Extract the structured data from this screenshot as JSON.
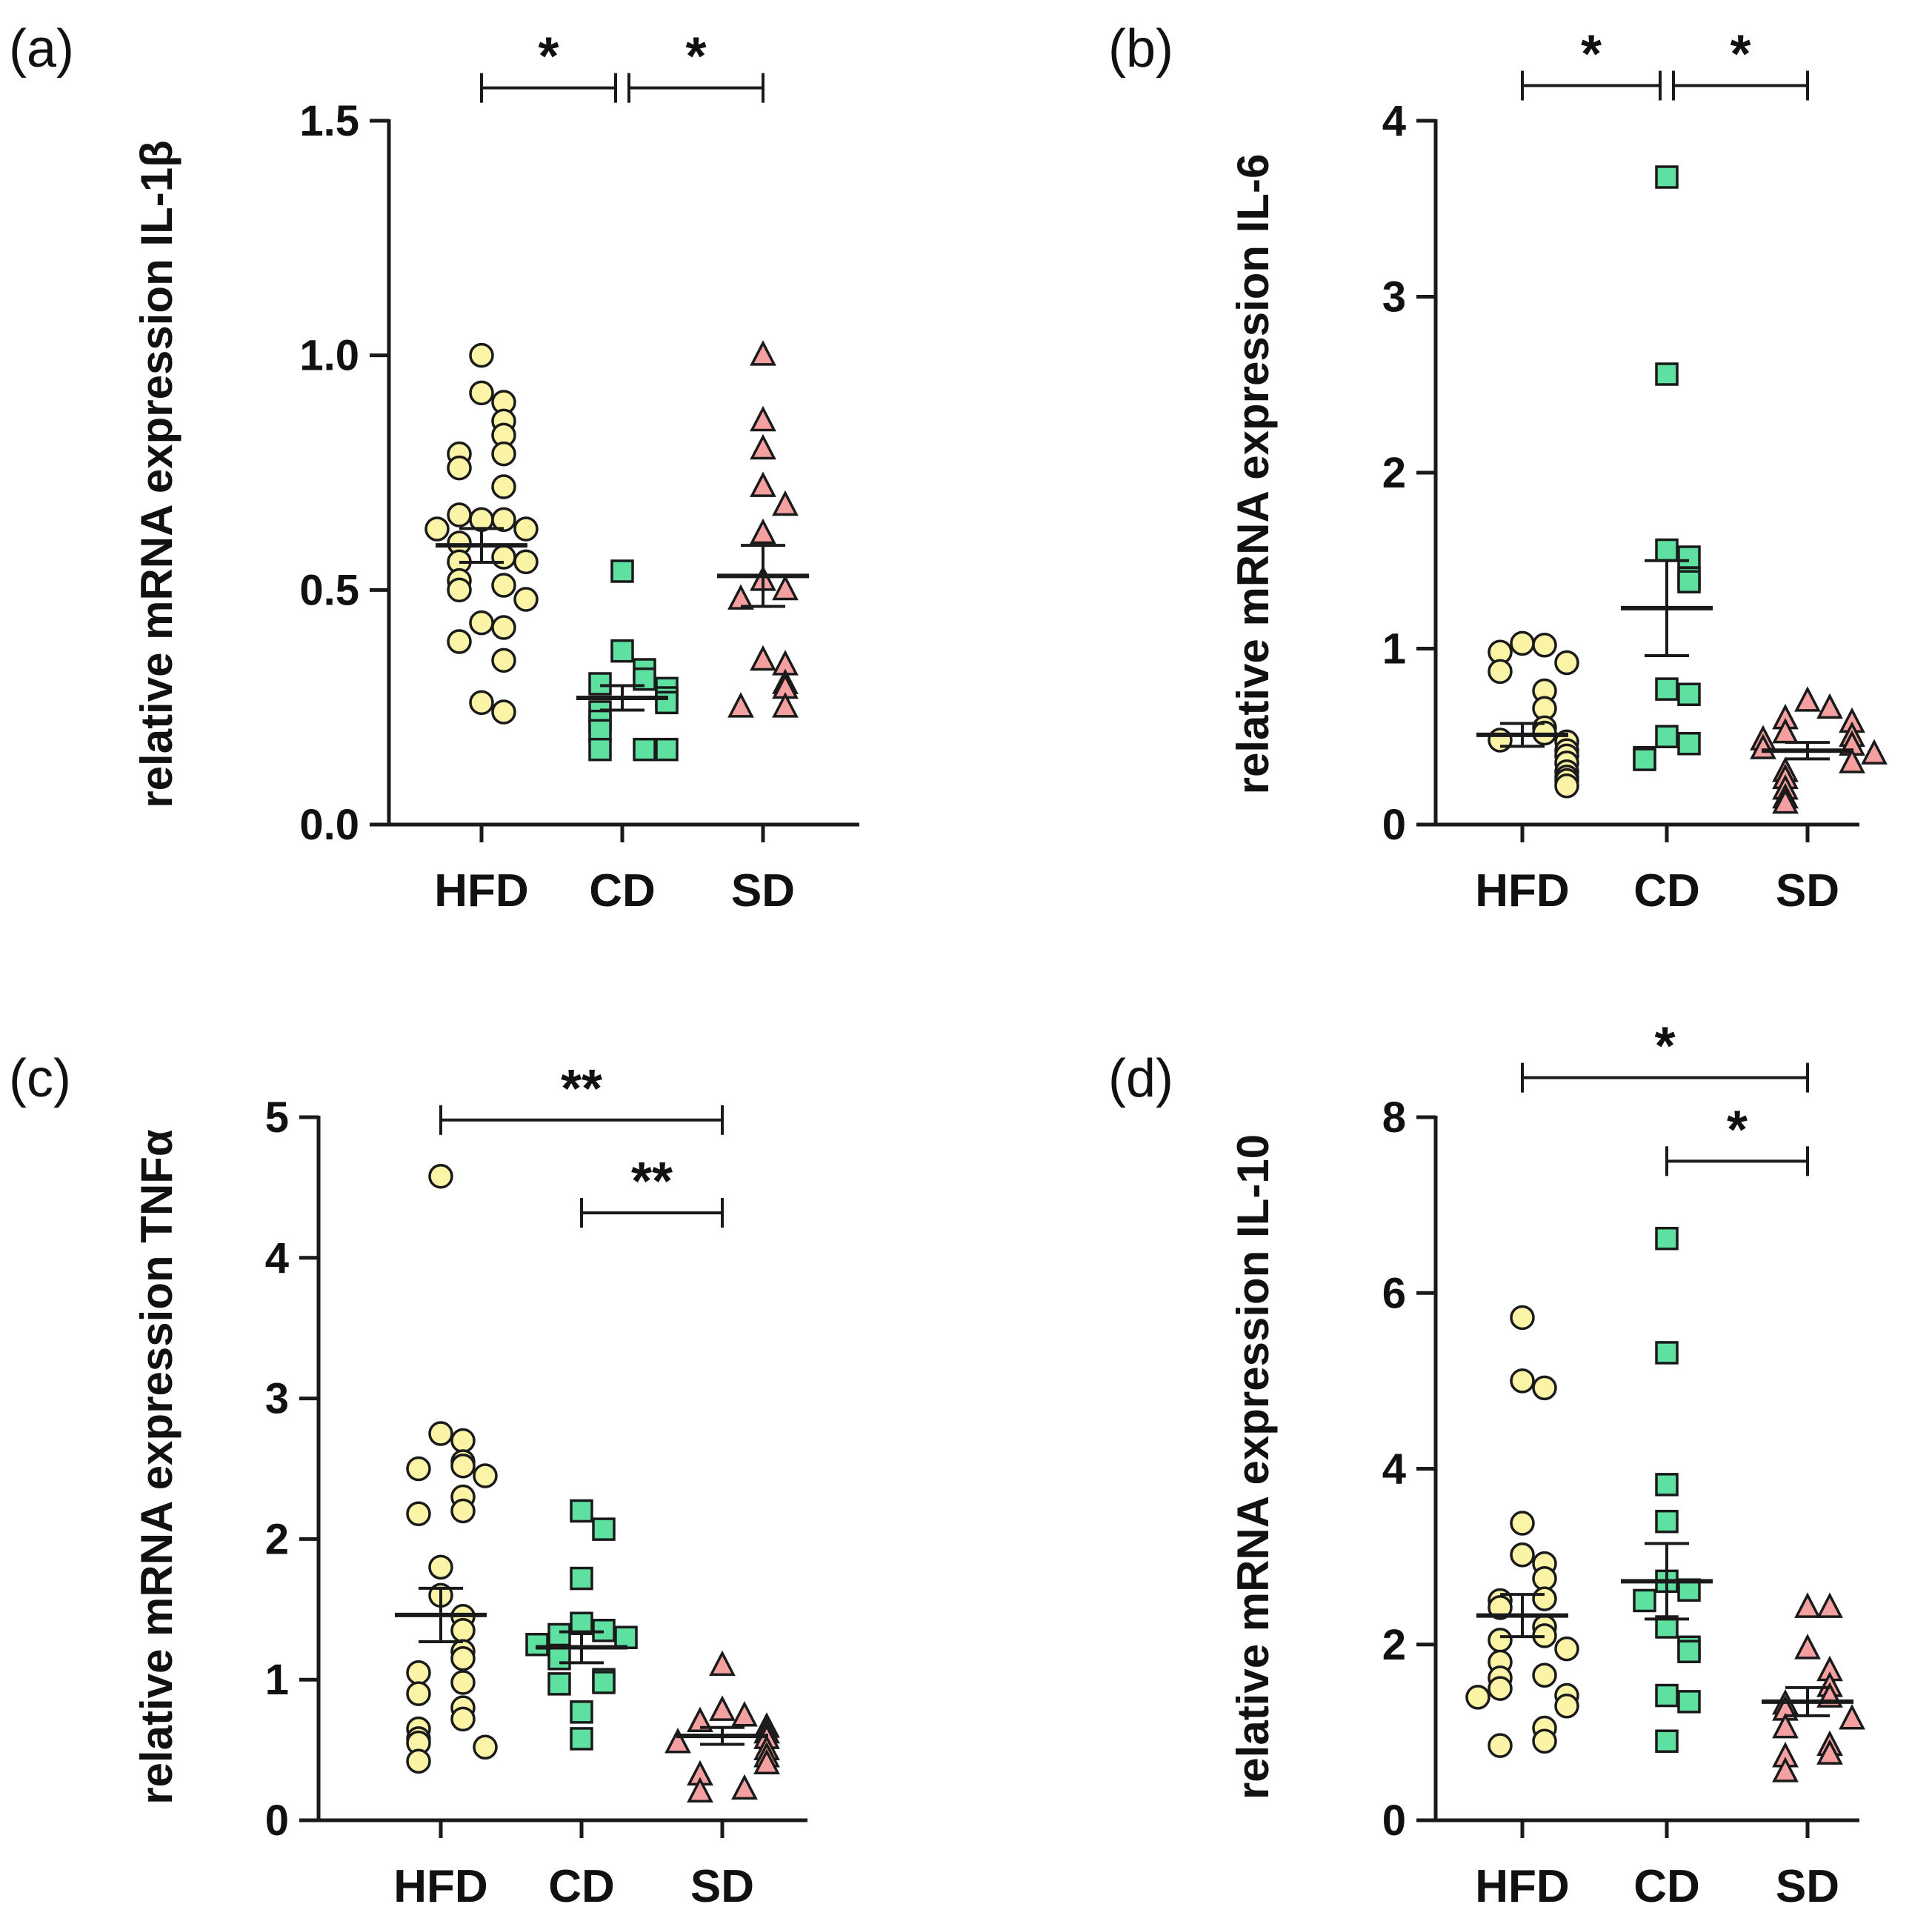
{
  "chart_data": [
    {
      "type": "scatter",
      "panel_label": "(a)",
      "ylabel": "relative mRNA expression IL-1β",
      "ylim": [
        0,
        1.5
      ],
      "yticks": [
        0.0,
        0.5,
        1.0,
        1.5
      ],
      "ytick_labels": [
        "0.0",
        "0.5",
        "1.0",
        "1.5"
      ],
      "categories": [
        "HFD",
        "CD",
        "SD"
      ],
      "series": [
        {
          "name": "HFD",
          "marker": "circle",
          "color": "#fbf3a6",
          "values": [
            1.0,
            0.92,
            0.9,
            0.86,
            0.83,
            0.79,
            0.79,
            0.76,
            0.72,
            0.65,
            0.65,
            0.66,
            0.63,
            0.63,
            0.6,
            0.57,
            0.56,
            0.56,
            0.52,
            0.51,
            0.5,
            0.48,
            0.43,
            0.42,
            0.39,
            0.35,
            0.26,
            0.24
          ],
          "mean": 0.595,
          "sem": 0.036
        },
        {
          "name": "CD",
          "marker": "square",
          "color": "#5ee0a0",
          "values": [
            0.54,
            0.37,
            0.33,
            0.31,
            0.3,
            0.29,
            0.27,
            0.26,
            0.24,
            0.22,
            0.2,
            0.16,
            0.16,
            0.16
          ],
          "mean": 0.27,
          "sem": 0.026
        },
        {
          "name": "SD",
          "marker": "triangle",
          "color": "#f4a0a0",
          "values": [
            1.0,
            0.86,
            0.8,
            0.72,
            0.68,
            0.62,
            0.52,
            0.5,
            0.48,
            0.35,
            0.34,
            0.3,
            0.29,
            0.25,
            0.25
          ],
          "mean": 0.53,
          "sem": 0.065
        }
      ],
      "significance": [
        {
          "from": "HFD",
          "to": "CD",
          "label": "*",
          "y": 1.57
        },
        {
          "from": "CD",
          "to": "SD",
          "label": "*",
          "y": 1.57
        }
      ]
    },
    {
      "type": "scatter",
      "panel_label": "(b)",
      "ylabel": "relative mRNA expression IL-6",
      "ylim": [
        0,
        4
      ],
      "yticks": [
        0,
        1,
        2,
        3,
        4
      ],
      "ytick_labels": [
        "0",
        "1",
        "2",
        "3",
        "4"
      ],
      "categories": [
        "HFD",
        "CD",
        "SD"
      ],
      "series": [
        {
          "name": "HFD",
          "marker": "circle",
          "color": "#fbf3a6",
          "values": [
            1.03,
            1.02,
            0.98,
            0.92,
            0.87,
            0.76,
            0.66,
            0.55,
            0.52,
            0.48,
            0.47,
            0.42,
            0.39,
            0.35,
            0.3,
            0.27,
            0.25,
            0.22
          ],
          "mean": 0.51,
          "sem": 0.065
        },
        {
          "name": "CD",
          "marker": "square",
          "color": "#5ee0a0",
          "values": [
            3.68,
            2.56,
            1.56,
            1.52,
            1.4,
            1.38,
            0.77,
            0.74,
            0.5,
            0.46,
            0.38,
            0.37
          ],
          "mean": 1.23,
          "sem": 0.27
        },
        {
          "name": "SD",
          "marker": "triangle",
          "color": "#f4a0a0",
          "values": [
            0.7,
            0.66,
            0.6,
            0.58,
            0.52,
            0.5,
            0.48,
            0.45,
            0.43,
            0.4,
            0.35,
            0.3,
            0.26,
            0.2,
            0.15,
            0.12
          ],
          "mean": 0.42,
          "sem": 0.047
        }
      ],
      "significance": [
        {
          "from": "HFD",
          "to": "CD",
          "label": "*",
          "y": 4.2
        },
        {
          "from": "CD",
          "to": "SD",
          "label": "*",
          "y": 4.2
        }
      ]
    },
    {
      "type": "scatter",
      "panel_label": "(c)",
      "ylabel": "relative mRNA expression TNFα",
      "ylim": [
        0,
        5
      ],
      "yticks": [
        0,
        1,
        2,
        3,
        4,
        5
      ],
      "ytick_labels": [
        "0",
        "1",
        "2",
        "3",
        "4",
        "5"
      ],
      "categories": [
        "HFD",
        "CD",
        "SD"
      ],
      "series": [
        {
          "name": "HFD",
          "marker": "circle",
          "color": "#fbf3a6",
          "values": [
            4.58,
            2.75,
            2.7,
            2.55,
            2.52,
            2.5,
            2.45,
            2.3,
            2.2,
            2.18,
            1.8,
            1.6,
            1.45,
            1.35,
            1.2,
            1.15,
            1.05,
            0.98,
            0.9,
            0.8,
            0.72,
            0.65,
            0.58,
            0.55,
            0.52,
            0.42
          ],
          "mean": 1.46,
          "sem": 0.19
        },
        {
          "name": "CD",
          "marker": "square",
          "color": "#5ee0a0",
          "values": [
            2.2,
            2.07,
            1.72,
            1.4,
            1.35,
            1.32,
            1.3,
            1.25,
            1.15,
            1.0,
            0.98,
            0.97,
            0.77,
            0.58
          ],
          "mean": 1.23,
          "sem": 0.11
        },
        {
          "name": "SD",
          "marker": "triangle",
          "color": "#f4a0a0",
          "values": [
            1.1,
            0.78,
            0.74,
            0.7,
            0.66,
            0.62,
            0.58,
            0.55,
            0.5,
            0.45,
            0.4,
            0.32,
            0.22,
            0.2
          ],
          "mean": 0.6,
          "sem": 0.06
        }
      ],
      "significance": [
        {
          "from": "HFD",
          "to": "SD",
          "label": "**",
          "y": 4.98
        },
        {
          "from": "CD",
          "to": "SD",
          "label": "**",
          "y": 4.32
        }
      ]
    },
    {
      "type": "scatter",
      "panel_label": "(d)",
      "ylabel": "relative mRNA expression IL-10",
      "ylim": [
        0,
        8
      ],
      "yticks": [
        0,
        2,
        4,
        6,
        8
      ],
      "ytick_labels": [
        "0",
        "2",
        "4",
        "6",
        "8"
      ],
      "categories": [
        "HFD",
        "CD",
        "SD"
      ],
      "series": [
        {
          "name": "HFD",
          "marker": "circle",
          "color": "#fbf3a6",
          "values": [
            5.72,
            5.0,
            4.92,
            3.38,
            3.02,
            2.92,
            2.75,
            2.52,
            2.5,
            2.42,
            2.2,
            2.1,
            2.05,
            1.95,
            1.8,
            1.65,
            1.62,
            1.5,
            1.42,
            1.4,
            1.3,
            1.05,
            0.9,
            0.85
          ],
          "mean": 2.33,
          "sem": 0.24
        },
        {
          "name": "CD",
          "marker": "square",
          "color": "#5ee0a0",
          "values": [
            6.62,
            5.32,
            3.82,
            3.4,
            2.72,
            2.62,
            2.5,
            2.2,
            1.97,
            1.92,
            1.42,
            1.35,
            0.9
          ],
          "mean": 2.72,
          "sem": 0.43
        },
        {
          "name": "SD",
          "marker": "triangle",
          "color": "#f4a0a0",
          "values": [
            2.42,
            2.42,
            1.95,
            1.7,
            1.52,
            1.4,
            1.32,
            1.25,
            1.15,
            1.05,
            0.85,
            0.75,
            0.72,
            0.55
          ],
          "mean": 1.35,
          "sem": 0.16
        }
      ],
      "significance": [
        {
          "from": "HFD",
          "to": "SD",
          "label": "*",
          "y": 8.45
        },
        {
          "from": "CD",
          "to": "SD",
          "label": "*",
          "y": 7.5
        }
      ]
    }
  ]
}
